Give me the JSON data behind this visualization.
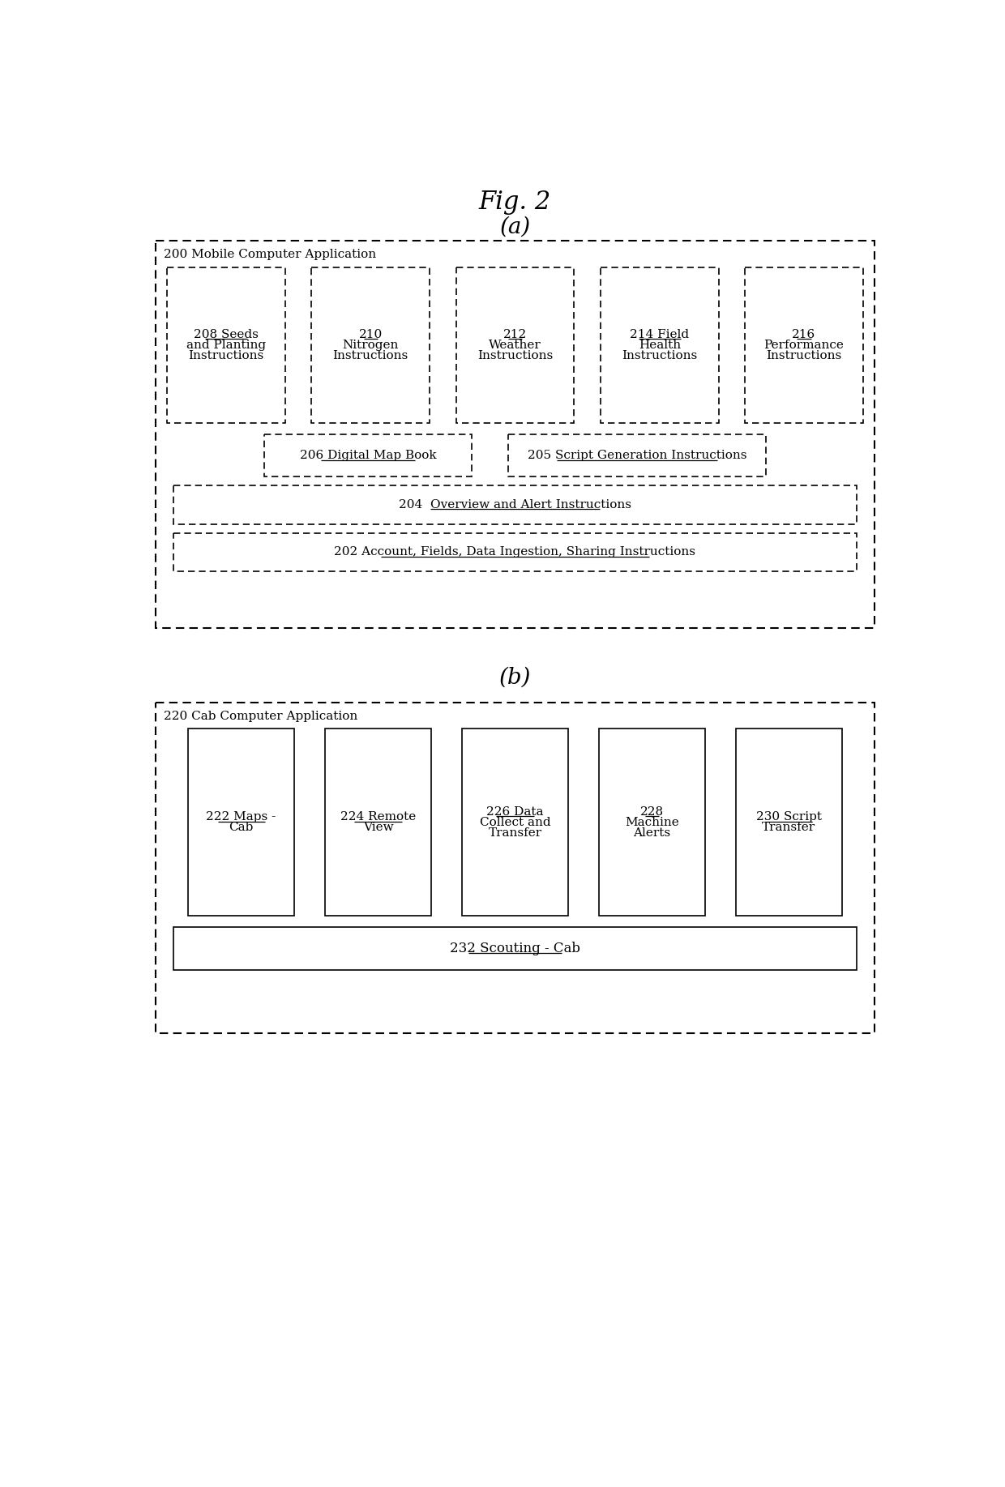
{
  "fig_title": "Fig. 2",
  "section_a_label": "(a)",
  "section_b_label": "(b)",
  "bg_color": "#ffffff",
  "text_color": "#000000",
  "diagram_a": {
    "outer_label": "200 Mobile Computer Application",
    "row1_boxes": [
      {
        "label": "208 Seeds\nand Planting\nInstructions"
      },
      {
        "label": "210\nNitrogen\nInstructions"
      },
      {
        "label": "212\nWeather\nInstructions"
      },
      {
        "label": "214 Field\nHealth\nInstructions"
      },
      {
        "label": "216\nPerformance\nInstructions"
      }
    ],
    "row2_left": {
      "label": "206 Digital Map Book"
    },
    "row2_right": {
      "label": "205 Script Generation Instructions"
    },
    "row3_box": {
      "label": "204  Overview and Alert Instructions"
    },
    "row4_box": {
      "label": "202 Account, Fields, Data Ingestion, Sharing Instructions"
    }
  },
  "diagram_b": {
    "outer_label": "220 Cab Computer Application",
    "row1_boxes": [
      {
        "label": "222 Maps -\nCab"
      },
      {
        "label": "224 Remote\nView"
      },
      {
        "label": "226 Data\nCollect and\nTransfer"
      },
      {
        "label": "228\nMachine\nAlerts"
      },
      {
        "label": "230 Script\nTransfer"
      }
    ],
    "row2_box": {
      "label": "232 Scouting - Cab"
    }
  }
}
